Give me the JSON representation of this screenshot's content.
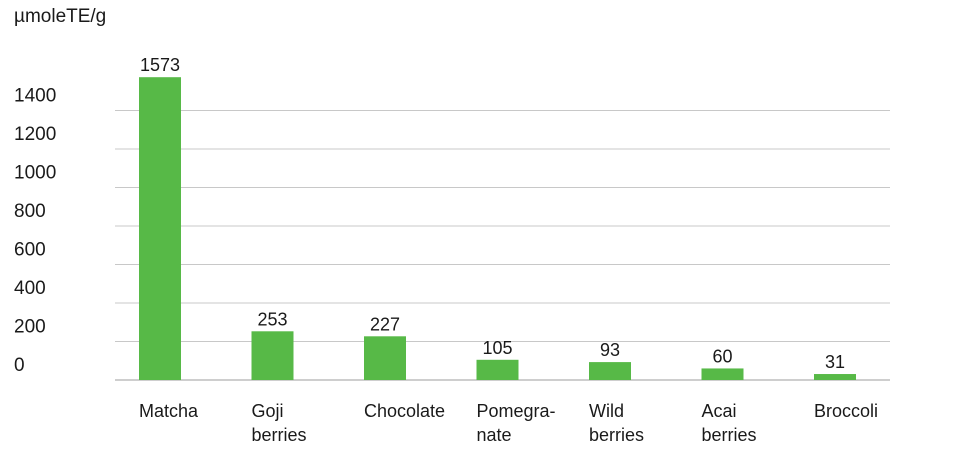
{
  "chart_data": {
    "type": "bar",
    "unit_label": "µmoleTE/g",
    "categories": [
      [
        "Matcha"
      ],
      [
        "Goji",
        "berries"
      ],
      [
        "Chocolate"
      ],
      [
        "Pomegra-",
        "nate"
      ],
      [
        "Wild",
        "berries"
      ],
      [
        "Acai",
        "berries"
      ],
      [
        "Broccoli"
      ]
    ],
    "values": [
      1573,
      253,
      227,
      105,
      93,
      60,
      31
    ],
    "data_labels": [
      "1573",
      "253",
      "227",
      "105",
      "93",
      "60",
      "31"
    ],
    "yticks": [
      0,
      200,
      400,
      600,
      800,
      1000,
      1200,
      1400
    ],
    "ytick_labels": [
      "0",
      "200",
      "400",
      "600",
      "800",
      "1000",
      "1200",
      "1400"
    ],
    "ylim": [
      0,
      1573
    ],
    "grid": true,
    "legend": "none",
    "bar_color": "#57b947",
    "grid_color": "#c8c8c8"
  }
}
